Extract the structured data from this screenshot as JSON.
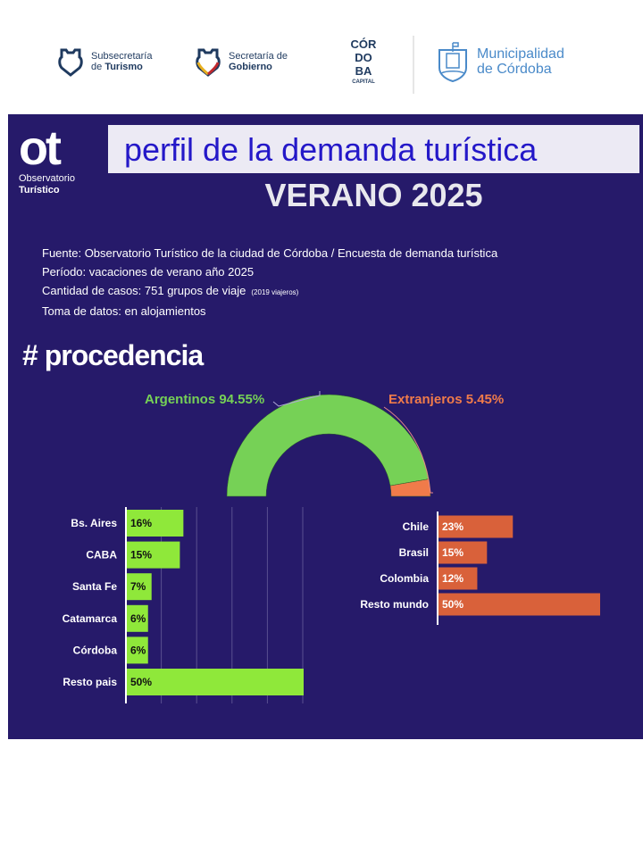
{
  "logos": {
    "subsecretaria": [
      "Subsecretaría",
      "de",
      "Turismo"
    ],
    "secretaria": [
      "Secretaría de",
      "Gobierno"
    ],
    "cordoba": "CÓR DO BA",
    "cordoba_sub": "CAPITAL",
    "municipalidad": [
      "Municipalidad",
      "de Córdoba"
    ]
  },
  "brand": {
    "ot": "ot",
    "line1": "Observatorio",
    "line2": "Turístico"
  },
  "title": "perfil de la demanda turística",
  "subtitle": "VERANO 2025",
  "info": {
    "fuente": "Fuente: Observatorio Turístico de la ciudad de Córdoba / Encuesta de demanda turística",
    "periodo": "Período: vacaciones de verano año 2025",
    "casos": "Cantidad de casos: 751 grupos de viaje",
    "viajeros": "(2019 viajeros)",
    "toma": "Toma de datos: en alojamientos"
  },
  "section": "# procedencia",
  "chart_data": [
    {
      "type": "pie",
      "subtype": "half-donut",
      "title": "procedencia",
      "labels": [
        "Argentinos 94.55%",
        "Extranjeros 5.45%"
      ],
      "values": [
        94.55,
        5.45
      ],
      "colors": [
        "#76d156",
        "#f07b4a"
      ]
    },
    {
      "type": "bar",
      "orientation": "horizontal",
      "title": "Argentinos",
      "categories": [
        "Bs. Aires",
        "CABA",
        "Santa Fe",
        "Catamarca",
        "Córdoba",
        "Resto pais"
      ],
      "values": [
        16,
        15,
        7,
        6,
        6,
        50
      ],
      "labels": [
        "16%",
        "15%",
        "7%",
        "6%",
        "6%",
        "50%"
      ],
      "xlim": [
        0,
        50
      ],
      "color": "#8fe83a"
    },
    {
      "type": "bar",
      "orientation": "horizontal",
      "title": "Extranjeros",
      "categories": [
        "Chile",
        "Brasil",
        "Colombia",
        "Resto mundo"
      ],
      "values": [
        23,
        15,
        12,
        50
      ],
      "labels": [
        "23%",
        "15%",
        "12%",
        "50%"
      ],
      "xlim": [
        0,
        50
      ],
      "color": "#d9613a"
    }
  ]
}
